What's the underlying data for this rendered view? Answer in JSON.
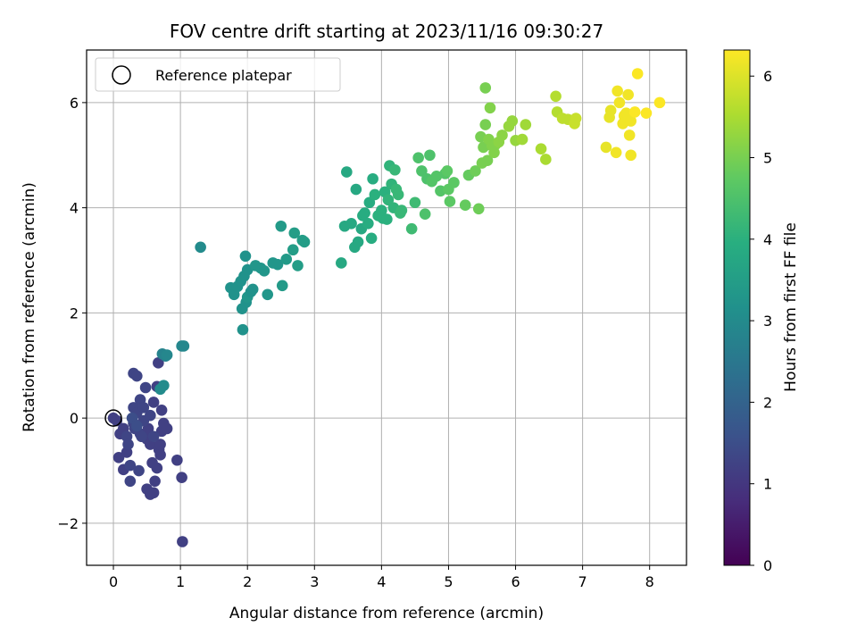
{
  "chart_data": {
    "type": "scatter",
    "title": "FOV centre drift starting at 2023/11/16 09:30:27",
    "xlabel": "Angular distance from reference (arcmin)",
    "ylabel": "Rotation from reference (arcmin)",
    "xlim": [
      -0.4,
      8.55
    ],
    "ylim": [
      -2.8,
      7.0
    ],
    "x_ticks": [
      "0",
      "1",
      "2",
      "3",
      "4",
      "5",
      "6",
      "7",
      "8"
    ],
    "y_ticks": [
      "−2",
      "0",
      "2",
      "4",
      "6"
    ],
    "grid": true,
    "colormap": "viridis",
    "colorbar": {
      "label": "Hours from first FF file",
      "range": [
        0,
        6.32
      ],
      "ticks": [
        "0",
        "1",
        "2",
        "3",
        "4",
        "5",
        "6"
      ]
    },
    "legend": {
      "position": "top-left",
      "entries": [
        {
          "label": "Reference platepar",
          "marker": "open-circle",
          "x": 0,
          "y": 0
        }
      ]
    },
    "points": [
      [
        0.0,
        0.0,
        1.2
      ],
      [
        0.05,
        -0.05,
        1.2
      ],
      [
        0.1,
        -0.3,
        1.2
      ],
      [
        0.15,
        -0.2,
        1.2
      ],
      [
        0.2,
        -0.35,
        1.3
      ],
      [
        0.08,
        -0.75,
        1.2
      ],
      [
        0.15,
        -0.98,
        1.2
      ],
      [
        0.25,
        -1.2,
        1.3
      ],
      [
        0.2,
        -0.65,
        1.2
      ],
      [
        0.3,
        -0.1,
        1.3
      ],
      [
        0.3,
        0.2,
        1.3
      ],
      [
        0.35,
        0.1,
        1.3
      ],
      [
        0.4,
        -0.3,
        1.3
      ],
      [
        0.3,
        0.85,
        1.3
      ],
      [
        0.35,
        0.8,
        1.3
      ],
      [
        0.4,
        0.35,
        1.3
      ],
      [
        0.45,
        0.2,
        1.3
      ],
      [
        0.48,
        0.58,
        1.3
      ],
      [
        0.5,
        -0.4,
        1.2
      ],
      [
        0.52,
        -0.2,
        1.2
      ],
      [
        0.55,
        -0.5,
        1.2
      ],
      [
        0.58,
        -0.85,
        1.2
      ],
      [
        0.5,
        -1.35,
        1.2
      ],
      [
        0.55,
        -1.45,
        1.2
      ],
      [
        0.6,
        -1.42,
        1.2
      ],
      [
        0.62,
        -1.2,
        1.2
      ],
      [
        0.65,
        -0.95,
        1.2
      ],
      [
        0.68,
        -0.6,
        1.2
      ],
      [
        0.7,
        -0.5,
        1.2
      ],
      [
        0.7,
        -0.7,
        1.2
      ],
      [
        0.72,
        -0.25,
        1.2
      ],
      [
        0.75,
        -0.1,
        1.2
      ],
      [
        0.8,
        -0.2,
        1.2
      ],
      [
        0.72,
        0.15,
        1.2
      ],
      [
        0.6,
        0.3,
        1.2
      ],
      [
        0.65,
        0.6,
        1.2
      ],
      [
        0.67,
        1.05,
        1.2
      ],
      [
        0.95,
        -0.8,
        1.2
      ],
      [
        1.02,
        -1.13,
        1.2
      ],
      [
        1.03,
        -2.35,
        1.2
      ],
      [
        0.25,
        -0.9,
        1.3
      ],
      [
        0.22,
        -0.5,
        1.3
      ],
      [
        0.32,
        -0.2,
        1.3
      ],
      [
        0.42,
        -0.35,
        1.3
      ],
      [
        0.45,
        -0.05,
        1.3
      ],
      [
        0.38,
        -1.0,
        1.3
      ],
      [
        0.6,
        -0.35,
        1.3
      ],
      [
        0.55,
        0.05,
        1.3
      ],
      [
        0.28,
        0.0,
        1.5
      ],
      [
        0.35,
        -0.15,
        1.5
      ],
      [
        0.7,
        0.55,
        3.0
      ],
      [
        0.75,
        0.62,
        3.0
      ],
      [
        0.73,
        1.22,
        2.8
      ],
      [
        0.78,
        1.18,
        2.8
      ],
      [
        0.8,
        1.2,
        2.9
      ],
      [
        1.02,
        1.37,
        2.9
      ],
      [
        1.05,
        1.37,
        2.9
      ],
      [
        1.3,
        3.25,
        3.0
      ],
      [
        1.75,
        2.48,
        3.2
      ],
      [
        1.8,
        2.35,
        3.2
      ],
      [
        1.85,
        2.5,
        3.2
      ],
      [
        1.9,
        2.6,
        3.2
      ],
      [
        1.95,
        2.7,
        3.2
      ],
      [
        1.92,
        2.08,
        3.2
      ],
      [
        1.98,
        2.2,
        3.2
      ],
      [
        2.0,
        2.3,
        3.3
      ],
      [
        1.93,
        1.68,
        3.2
      ],
      [
        2.0,
        2.82,
        3.2
      ],
      [
        1.97,
        3.08,
        3.2
      ],
      [
        2.05,
        2.4,
        3.2
      ],
      [
        2.08,
        2.45,
        3.2
      ],
      [
        2.12,
        2.9,
        3.3
      ],
      [
        2.2,
        2.85,
        3.3
      ],
      [
        2.25,
        2.8,
        3.3
      ],
      [
        2.3,
        2.35,
        3.3
      ],
      [
        2.38,
        2.95,
        3.3
      ],
      [
        2.45,
        2.92,
        3.3
      ],
      [
        2.5,
        3.65,
        3.4
      ],
      [
        2.52,
        2.52,
        3.4
      ],
      [
        2.58,
        3.02,
        3.4
      ],
      [
        2.68,
        3.2,
        3.5
      ],
      [
        2.7,
        3.52,
        3.5
      ],
      [
        2.75,
        2.9,
        3.5
      ],
      [
        2.82,
        3.38,
        3.5
      ],
      [
        2.85,
        3.35,
        3.5
      ],
      [
        3.4,
        2.95,
        3.8
      ],
      [
        3.45,
        3.65,
        3.8
      ],
      [
        3.48,
        4.68,
        3.8
      ],
      [
        3.55,
        3.7,
        3.8
      ],
      [
        3.6,
        3.25,
        3.8
      ],
      [
        3.62,
        4.35,
        3.8
      ],
      [
        3.65,
        3.35,
        3.8
      ],
      [
        3.7,
        3.6,
        3.8
      ],
      [
        3.72,
        3.85,
        3.9
      ],
      [
        3.75,
        3.9,
        3.9
      ],
      [
        3.8,
        3.7,
        3.9
      ],
      [
        3.82,
        4.1,
        3.9
      ],
      [
        3.85,
        3.42,
        3.9
      ],
      [
        3.87,
        4.55,
        3.9
      ],
      [
        3.9,
        4.25,
        4.0
      ],
      [
        3.95,
        3.85,
        4.0
      ],
      [
        4.0,
        3.95,
        4.0
      ],
      [
        4.02,
        3.8,
        4.0
      ],
      [
        4.05,
        4.3,
        4.0
      ],
      [
        4.08,
        3.78,
        4.0
      ],
      [
        4.1,
        4.15,
        4.1
      ],
      [
        4.12,
        4.8,
        4.1
      ],
      [
        4.15,
        4.45,
        4.1
      ],
      [
        4.18,
        4.0,
        4.1
      ],
      [
        4.2,
        4.72,
        4.2
      ],
      [
        4.22,
        4.35,
        4.2
      ],
      [
        4.25,
        4.25,
        4.2
      ],
      [
        4.28,
        3.9,
        4.2
      ],
      [
        4.3,
        3.95,
        4.2
      ],
      [
        4.45,
        3.6,
        4.3
      ],
      [
        4.5,
        4.1,
        4.3
      ],
      [
        4.55,
        4.95,
        4.5
      ],
      [
        4.6,
        4.7,
        4.5
      ],
      [
        4.65,
        3.88,
        4.5
      ],
      [
        4.68,
        4.55,
        4.5
      ],
      [
        4.72,
        5.0,
        4.5
      ],
      [
        4.75,
        4.5,
        4.6
      ],
      [
        4.82,
        4.6,
        4.6
      ],
      [
        4.88,
        4.32,
        4.6
      ],
      [
        4.95,
        4.65,
        4.6
      ],
      [
        4.98,
        4.7,
        4.7
      ],
      [
        5.0,
        4.35,
        4.7
      ],
      [
        5.02,
        4.12,
        4.7
      ],
      [
        5.08,
        4.48,
        4.7
      ],
      [
        5.25,
        4.05,
        4.8
      ],
      [
        5.3,
        4.62,
        4.8
      ],
      [
        5.4,
        4.7,
        4.9
      ],
      [
        5.45,
        3.98,
        4.9
      ],
      [
        5.48,
        5.35,
        5.0
      ],
      [
        5.5,
        4.85,
        5.0
      ],
      [
        5.52,
        5.15,
        5.0
      ],
      [
        5.55,
        6.28,
        5.0
      ],
      [
        5.55,
        5.58,
        5.0
      ],
      [
        5.58,
        4.9,
        5.0
      ],
      [
        5.6,
        5.3,
        5.1
      ],
      [
        5.62,
        5.9,
        5.1
      ],
      [
        5.65,
        5.18,
        5.1
      ],
      [
        5.68,
        5.05,
        5.1
      ],
      [
        5.7,
        5.2,
        5.1
      ],
      [
        5.75,
        5.25,
        5.2
      ],
      [
        5.8,
        5.38,
        5.2
      ],
      [
        5.9,
        5.55,
        5.3
      ],
      [
        5.95,
        5.65,
        5.3
      ],
      [
        6.0,
        5.28,
        5.3
      ],
      [
        6.1,
        5.3,
        5.4
      ],
      [
        6.15,
        5.58,
        5.4
      ],
      [
        6.38,
        5.12,
        5.5
      ],
      [
        6.45,
        4.92,
        5.5
      ],
      [
        6.6,
        6.12,
        5.6
      ],
      [
        6.62,
        5.82,
        5.6
      ],
      [
        6.7,
        5.7,
        5.7
      ],
      [
        6.78,
        5.68,
        5.7
      ],
      [
        6.88,
        5.6,
        5.8
      ],
      [
        6.9,
        5.7,
        5.8
      ],
      [
        7.35,
        5.15,
        6.1
      ],
      [
        7.4,
        5.72,
        6.1
      ],
      [
        7.42,
        5.85,
        6.1
      ],
      [
        7.5,
        5.05,
        6.2
      ],
      [
        7.52,
        6.22,
        6.2
      ],
      [
        7.55,
        6.0,
        6.2
      ],
      [
        7.6,
        5.6,
        6.2
      ],
      [
        7.62,
        5.75,
        6.2
      ],
      [
        7.65,
        5.8,
        6.2
      ],
      [
        7.68,
        6.15,
        6.2
      ],
      [
        7.7,
        5.38,
        6.2
      ],
      [
        7.72,
        5.0,
        6.2
      ],
      [
        7.72,
        5.65,
        6.2
      ],
      [
        7.78,
        5.82,
        6.3
      ],
      [
        7.82,
        6.55,
        6.3
      ],
      [
        7.95,
        5.8,
        6.3
      ],
      [
        8.15,
        6.0,
        6.3
      ]
    ]
  }
}
